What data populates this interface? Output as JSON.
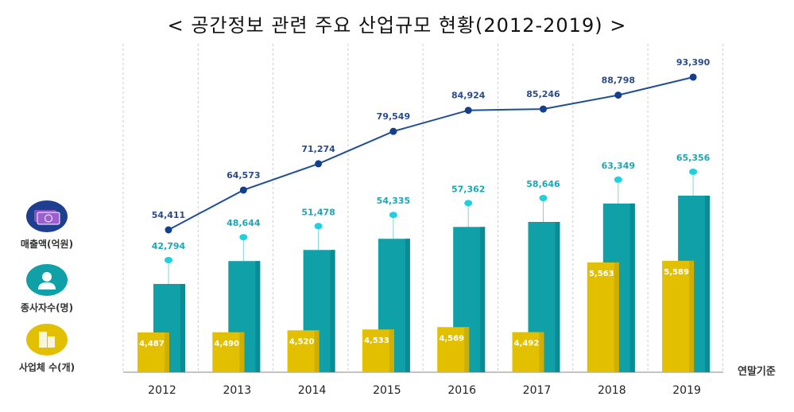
{
  "chart_data": {
    "type": "bar",
    "title": "< 공간정보 관련 주요 산업규모 현황(2012-2019) >",
    "categories": [
      "2012",
      "2013",
      "2014",
      "2015",
      "2016",
      "2017",
      "2018",
      "2019"
    ],
    "series": [
      {
        "name": "매출액(억원)",
        "kind": "line",
        "color": "#1f4e96",
        "values": [
          54411,
          64573,
          71274,
          79549,
          84924,
          85246,
          88798,
          93390
        ],
        "labels": [
          "54,411",
          "64,573",
          "71,274",
          "79,549",
          "84,924",
          "85,246",
          "88,798",
          "93,390"
        ]
      },
      {
        "name": "종사자수(명)",
        "kind": "bar",
        "color": "#0fa0a8",
        "values": [
          42794,
          48644,
          51478,
          54335,
          57362,
          58646,
          63349,
          65356
        ],
        "labels": [
          "42,794",
          "48,644",
          "51,478",
          "54,335",
          "57,362",
          "58,646",
          "63,349",
          "65,356"
        ]
      },
      {
        "name": "사업체 수(개)",
        "kind": "bar",
        "color": "#e2c000",
        "values": [
          4487,
          4490,
          4520,
          4533,
          4569,
          4492,
          5563,
          5589
        ],
        "labels": [
          "4,487",
          "4,490",
          "4,520",
          "4,533",
          "4,569",
          "4,492",
          "5,563",
          "5,589"
        ]
      }
    ],
    "note": "연말기준",
    "grid": "vertical dashed",
    "legend": "left"
  },
  "legend_icons": [
    "money-icon",
    "person-icon",
    "building-icon"
  ]
}
